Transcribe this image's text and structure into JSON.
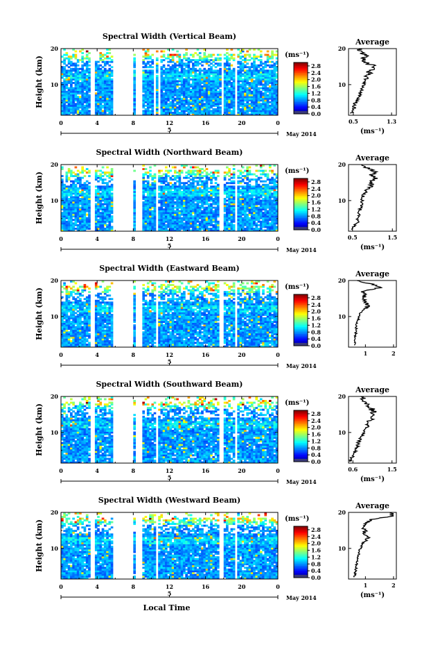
{
  "page": {
    "x_axis_label": "Local Time"
  },
  "chart_data": [
    {
      "type": "heatmap",
      "title": "Spectral Width (Vertical Beam)",
      "ylabel": "Height (km)",
      "x_ticks": [
        "0",
        "4",
        "8",
        "12",
        "16",
        "20",
        "0"
      ],
      "y_ticks": [
        "10",
        "20"
      ],
      "xlim": [
        0,
        24
      ],
      "ylim": [
        1.5,
        20
      ],
      "date_tick": "5",
      "date_label": "May 2014",
      "colorbar_unit": "(ms⁻¹)",
      "colorbar_ticks": [
        "0.0",
        "0.4",
        "0.8",
        "1.2",
        "1.6",
        "2.0",
        "2.4",
        "2.8"
      ],
      "colorbar_range": [
        0,
        3.0
      ],
      "gaps_hours": [
        [
          3.3,
          3.7
        ],
        [
          5.8,
          8.0
        ],
        [
          8.3,
          8.9
        ],
        [
          10.2,
          10.6
        ],
        [
          10.8,
          11.1
        ],
        [
          17.7,
          18.0
        ],
        [
          19.2,
          19.5
        ]
      ],
      "profile": {
        "title": "Average",
        "xlabel": "(ms⁻¹)",
        "x_ticks": [
          "0.5",
          "1.3"
        ],
        "y_ticks": [
          "10",
          "20"
        ],
        "xlim": [
          0.4,
          1.4
        ],
        "heights": [
          2,
          3,
          4,
          5,
          6,
          7,
          8,
          9,
          10,
          11,
          12,
          13,
          14,
          15,
          16,
          17,
          18,
          19,
          20
        ],
        "values": [
          0.45,
          0.5,
          0.52,
          0.55,
          0.6,
          0.62,
          0.66,
          0.7,
          0.72,
          0.76,
          0.78,
          0.82,
          0.86,
          0.95,
          0.8,
          0.72,
          0.76,
          0.66,
          0.62
        ]
      }
    },
    {
      "type": "heatmap",
      "title": "Spectral Width (Northward Beam)",
      "ylabel": "Height (km)",
      "x_ticks": [
        "0",
        "4",
        "8",
        "12",
        "16",
        "20",
        "0"
      ],
      "y_ticks": [
        "10",
        "20"
      ],
      "xlim": [
        0,
        24
      ],
      "ylim": [
        1.5,
        20
      ],
      "date_tick": "5",
      "date_label": "May 2014",
      "colorbar_unit": "(ms⁻¹)",
      "colorbar_ticks": [
        "0.0",
        "0.4",
        "0.8",
        "1.2",
        "1.6",
        "2.0",
        "2.4",
        "2.8"
      ],
      "colorbar_range": [
        0,
        3.0
      ],
      "gaps_hours": [
        [
          3.3,
          3.7
        ],
        [
          5.8,
          8.0
        ],
        [
          8.3,
          8.9
        ],
        [
          10.4,
          10.8
        ],
        [
          17.6,
          17.9
        ],
        [
          19.3,
          19.6
        ]
      ],
      "profile": {
        "title": "Average",
        "xlabel": "(ms⁻¹)",
        "x_ticks": [
          "0.5",
          "1.5"
        ],
        "y_ticks": [
          "10",
          "20"
        ],
        "xlim": [
          0.4,
          1.6
        ],
        "heights": [
          2,
          3,
          4,
          5,
          6,
          7,
          8,
          9,
          10,
          11,
          12,
          13,
          14,
          15,
          16,
          17,
          18,
          19,
          20
        ],
        "values": [
          0.5,
          0.55,
          0.62,
          0.64,
          0.66,
          0.68,
          0.7,
          0.72,
          0.74,
          0.76,
          0.78,
          0.82,
          1.0,
          0.92,
          1.08,
          0.96,
          1.1,
          0.86,
          0.74
        ]
      }
    },
    {
      "type": "heatmap",
      "title": "Spectral Width (Eastward Beam)",
      "ylabel": "Height (km)",
      "x_ticks": [
        "0",
        "4",
        "8",
        "12",
        "16",
        "20",
        "0"
      ],
      "y_ticks": [
        "10",
        "20"
      ],
      "xlim": [
        0,
        24
      ],
      "ylim": [
        1.5,
        20
      ],
      "date_tick": "5",
      "date_label": "May 2014",
      "colorbar_unit": "(ms⁻¹)",
      "colorbar_ticks": [
        "0.0",
        "0.4",
        "0.8",
        "1.2",
        "1.6",
        "2.0",
        "2.4",
        "2.8"
      ],
      "colorbar_range": [
        0,
        3.0
      ],
      "gaps_hours": [
        [
          3.3,
          3.7
        ],
        [
          5.8,
          8.0
        ],
        [
          8.3,
          8.9
        ],
        [
          10.4,
          10.8
        ],
        [
          17.6,
          17.9
        ],
        [
          19.3,
          19.6
        ]
      ],
      "profile": {
        "title": "Average",
        "xlabel": "",
        "x_ticks": [
          "1",
          "2"
        ],
        "y_ticks": [
          "10",
          "20"
        ],
        "xlim": [
          0.4,
          2.1
        ],
        "heights": [
          2,
          3,
          4,
          5,
          6,
          7,
          8,
          9,
          10,
          11,
          12,
          13,
          14,
          15,
          16,
          17,
          18,
          19,
          20
        ],
        "values": [
          0.6,
          0.62,
          0.64,
          0.66,
          0.66,
          0.68,
          0.7,
          0.74,
          0.78,
          0.82,
          0.95,
          1.1,
          1.0,
          0.9,
          1.0,
          0.9,
          1.5,
          1.25,
          0.7
        ]
      }
    },
    {
      "type": "heatmap",
      "title": "Spectral Width (Southward Beam)",
      "ylabel": "Height (km)",
      "x_ticks": [
        "0",
        "4",
        "8",
        "12",
        "16",
        "20",
        "0"
      ],
      "y_ticks": [
        "10",
        "20"
      ],
      "xlim": [
        0,
        24
      ],
      "ylim": [
        1.5,
        20
      ],
      "date_tick": "5",
      "date_label": "May 2014",
      "colorbar_unit": "(ms⁻¹)",
      "colorbar_ticks": [
        "0.0",
        "0.4",
        "0.8",
        "1.2",
        "1.6",
        "2.0",
        "2.4",
        "2.8"
      ],
      "colorbar_range": [
        0,
        3.0
      ],
      "gaps_hours": [
        [
          3.3,
          3.7
        ],
        [
          5.8,
          8.0
        ],
        [
          8.3,
          8.9
        ],
        [
          10.4,
          10.8
        ],
        [
          17.6,
          17.9
        ],
        [
          19.3,
          19.6
        ]
      ],
      "profile": {
        "title": "Average",
        "xlabel": "(ms⁻¹)",
        "x_ticks": [
          "0.6",
          "1.5"
        ],
        "y_ticks": [
          "10",
          "20"
        ],
        "xlim": [
          0.5,
          1.6
        ],
        "heights": [
          2,
          3,
          4,
          5,
          6,
          7,
          8,
          9,
          10,
          11,
          12,
          13,
          14,
          15,
          16,
          17,
          18,
          19,
          20
        ],
        "values": [
          0.55,
          0.58,
          0.62,
          0.66,
          0.7,
          0.72,
          0.76,
          0.8,
          0.84,
          0.9,
          0.96,
          1.0,
          1.02,
          1.04,
          1.06,
          1.0,
          0.94,
          0.86,
          0.78
        ]
      }
    },
    {
      "type": "heatmap",
      "title": "Spectral Width (Westward Beam)",
      "ylabel": "Height (km)",
      "x_ticks": [
        "0",
        "4",
        "8",
        "12",
        "16",
        "20",
        "0"
      ],
      "y_ticks": [
        "10",
        "20"
      ],
      "xlim": [
        0,
        24
      ],
      "ylim": [
        1.5,
        20
      ],
      "date_tick": "5",
      "date_label": "May 2014",
      "colorbar_unit": "(ms⁻¹)",
      "colorbar_ticks": [
        "0.0",
        "0.4",
        "0.8",
        "1.2",
        "1.6",
        "2.0",
        "2.4",
        "2.8"
      ],
      "colorbar_range": [
        0,
        3.0
      ],
      "gaps_hours": [
        [
          3.3,
          3.7
        ],
        [
          5.8,
          8.0
        ],
        [
          8.3,
          8.9
        ],
        [
          10.4,
          10.8
        ],
        [
          17.6,
          17.9
        ],
        [
          19.3,
          19.6
        ]
      ],
      "profile": {
        "title": "Average",
        "xlabel": "(ms⁻¹)",
        "x_ticks": [
          "1",
          "2"
        ],
        "y_ticks": [
          "10",
          "20"
        ],
        "xlim": [
          0.4,
          2.1
        ],
        "heights": [
          2,
          3,
          4,
          5,
          6,
          7,
          8,
          9,
          10,
          11,
          12,
          13,
          14,
          15,
          16,
          17,
          18,
          19,
          20
        ],
        "values": [
          0.62,
          0.64,
          0.66,
          0.68,
          0.7,
          0.72,
          0.74,
          0.78,
          0.82,
          0.88,
          0.95,
          1.15,
          0.95,
          1.0,
          0.9,
          1.0,
          1.2,
          1.95,
          1.9
        ]
      }
    }
  ]
}
